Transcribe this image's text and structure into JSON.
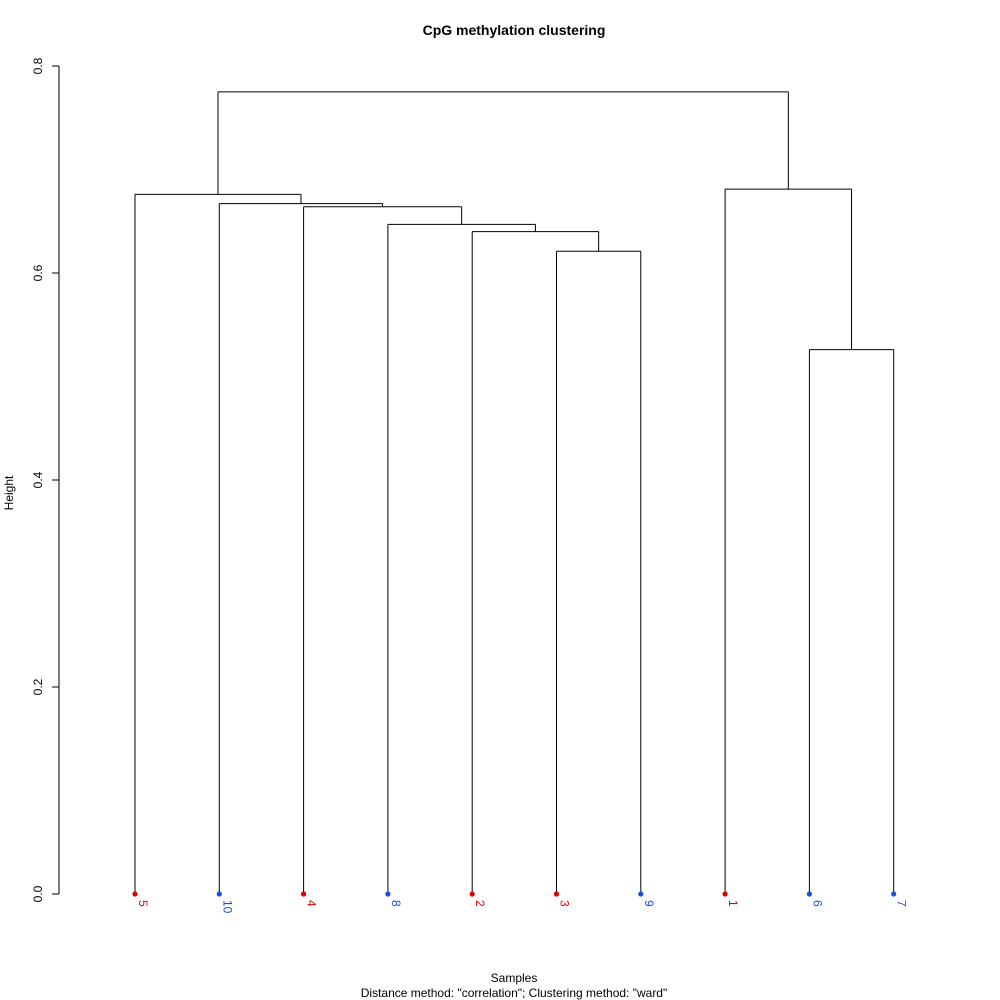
{
  "chart_data": {
    "type": "dendrogram",
    "title": "CpG methylation clustering",
    "xlabel": "Samples",
    "sub_xlabel": "Distance method: \"correlation\"; Clustering method: \"ward\"",
    "ylabel": "Height",
    "ylim": [
      0,
      0.8
    ],
    "y_ticks": [
      "0.0",
      "0.2",
      "0.4",
      "0.6",
      "0.8"
    ],
    "leaves": [
      {
        "label": "5",
        "group": "red"
      },
      {
        "label": "10",
        "group": "blue"
      },
      {
        "label": "4",
        "group": "red"
      },
      {
        "label": "8",
        "group": "blue"
      },
      {
        "label": "2",
        "group": "red"
      },
      {
        "label": "3",
        "group": "red"
      },
      {
        "label": "9",
        "group": "blue"
      },
      {
        "label": "1",
        "group": "red"
      },
      {
        "label": "6",
        "group": "blue"
      },
      {
        "label": "7",
        "group": "blue"
      }
    ],
    "merges": [
      {
        "id": "m1",
        "left": "leaf:3",
        "right": "leaf:9",
        "height": 0.621
      },
      {
        "id": "m2",
        "left": "leaf:2",
        "right": "m1",
        "height": 0.64
      },
      {
        "id": "m3",
        "left": "leaf:8",
        "right": "m2",
        "height": 0.647
      },
      {
        "id": "m4",
        "left": "leaf:4",
        "right": "m3",
        "height": 0.664
      },
      {
        "id": "m5",
        "left": "leaf:10",
        "right": "m4",
        "height": 0.667
      },
      {
        "id": "m6",
        "left": "leaf:5",
        "right": "m5",
        "height": 0.676
      },
      {
        "id": "m7",
        "left": "leaf:6",
        "right": "leaf:7",
        "height": 0.526
      },
      {
        "id": "m8",
        "left": "leaf:1",
        "right": "m7",
        "height": 0.681
      },
      {
        "id": "m9",
        "left": "m6",
        "right": "m8",
        "height": 0.775
      }
    ],
    "colors": {
      "red": "#e00000",
      "blue": "#1a4fe0"
    }
  }
}
